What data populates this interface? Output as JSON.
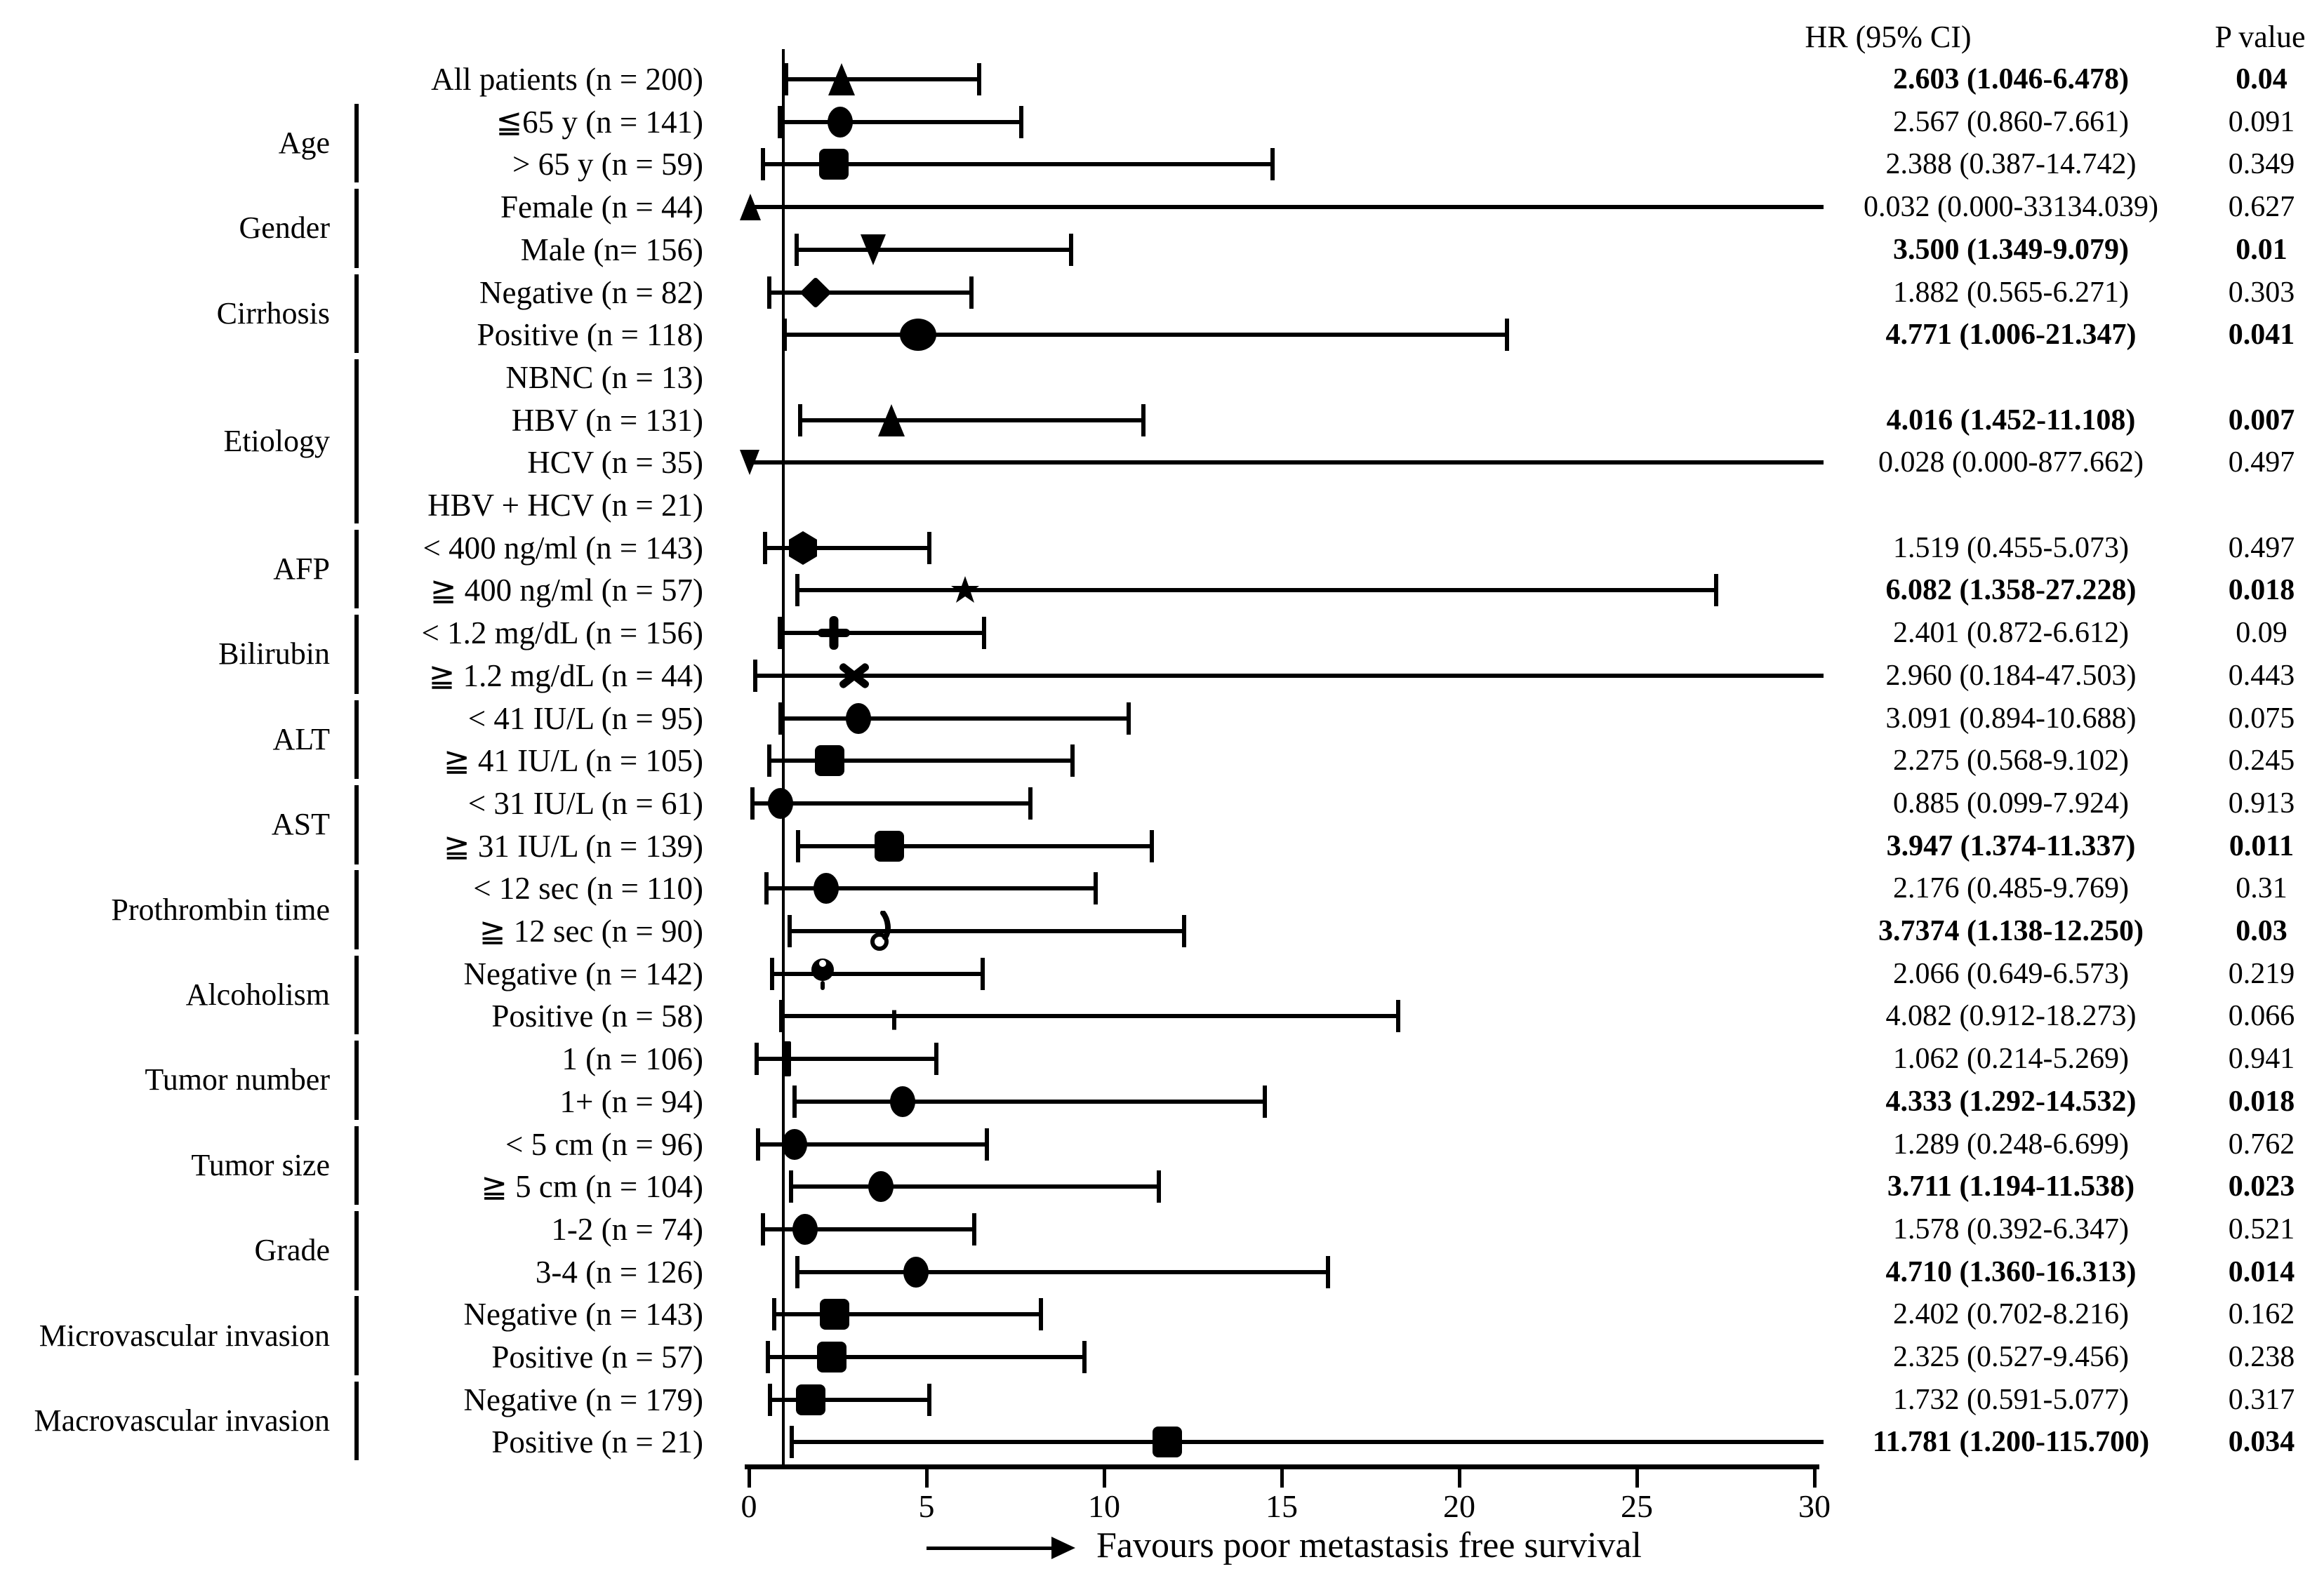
{
  "chart_data": {
    "type": "scatter",
    "chart_kind": "forest-plot",
    "title": "",
    "xlabel": "",
    "ylabel": "",
    "grid": false,
    "x_axis": {
      "min": 0,
      "max": 30,
      "ticks": [
        "0",
        "5",
        "10",
        "15",
        "20",
        "25",
        "30"
      ],
      "direction_label": "Favours poor metastasis free survival"
    },
    "column_headers": {
      "hr": "HR (95% CI)",
      "p": "P value"
    },
    "rows": [
      {
        "group": "",
        "label": "All patients (n = 200)",
        "marker": "triangle-up",
        "hr": 2.603,
        "ci_low": 1.046,
        "ci_high": 6.478,
        "hr_ci": "2.603 (1.046-6.478)",
        "p": "0.04",
        "significant": true
      },
      {
        "group": "Age",
        "label": "≦65 y (n = 141)",
        "marker": "ellipse",
        "hr": 2.567,
        "ci_low": 0.86,
        "ci_high": 7.661,
        "hr_ci": "2.567 (0.860-7.661)",
        "p": "0.091",
        "significant": false
      },
      {
        "group": "Age",
        "label": "> 65 y (n = 59)",
        "marker": "square",
        "hr": 2.388,
        "ci_low": 0.387,
        "ci_high": 14.742,
        "hr_ci": "2.388 (0.387-14.742)",
        "p": "0.349",
        "significant": false
      },
      {
        "group": "Gender",
        "label": "Female (n = 44)",
        "marker": "triangle-up-small",
        "hr": 0.032,
        "ci_low": 0.0,
        "ci_high": 33134.039,
        "hr_ci": "0.032 (0.000-33134.039)",
        "p": "0.627",
        "significant": false
      },
      {
        "group": "Gender",
        "label": "Male (n= 156)",
        "marker": "triangle-down",
        "hr": 3.5,
        "ci_low": 1.349,
        "ci_high": 9.079,
        "hr_ci": "3.500 (1.349-9.079)",
        "p": "0.01",
        "significant": true
      },
      {
        "group": "Cirrhosis",
        "label": "Negative (n = 82)",
        "marker": "diamond",
        "hr": 1.882,
        "ci_low": 0.565,
        "ci_high": 6.271,
        "hr_ci": "1.882 (0.565-6.271)",
        "p": "0.303",
        "significant": false
      },
      {
        "group": "Cirrhosis",
        "label": "Positive (n = 118)",
        "marker": "circle-large",
        "hr": 4.771,
        "ci_low": 1.006,
        "ci_high": 21.347,
        "hr_ci": "4.771 (1.006-21.347)",
        "p": "0.041",
        "significant": true
      },
      {
        "group": "Etiology",
        "label": "NBNC (n = 13)",
        "marker": "none",
        "hr": null,
        "ci_low": null,
        "ci_high": null,
        "hr_ci": "",
        "p": "",
        "significant": false
      },
      {
        "group": "Etiology",
        "label": "HBV (n = 131)",
        "marker": "triangle-up",
        "hr": 4.016,
        "ci_low": 1.452,
        "ci_high": 11.108,
        "hr_ci": "4.016 (1.452-11.108)",
        "p": "0.007",
        "significant": true
      },
      {
        "group": "Etiology",
        "label": "HCV (n = 35)",
        "marker": "triangle-down-small",
        "hr": 0.028,
        "ci_low": 0.0,
        "ci_high": 877.662,
        "hr_ci": "0.028 (0.000-877.662)",
        "p": "0.497",
        "significant": false
      },
      {
        "group": "Etiology",
        "label": "HBV + HCV (n = 21)",
        "marker": "none",
        "hr": null,
        "ci_low": null,
        "ci_high": null,
        "hr_ci": "",
        "p": "",
        "significant": false
      },
      {
        "group": "AFP",
        "label": "< 400 ng/ml (n = 143)",
        "marker": "hexagon",
        "hr": 1.519,
        "ci_low": 0.455,
        "ci_high": 5.073,
        "hr_ci": "1.519 (0.455-5.073)",
        "p": "0.497",
        "significant": false
      },
      {
        "group": "AFP",
        "label": "≧ 400 ng/ml (n = 57)",
        "marker": "star",
        "hr": 6.082,
        "ci_low": 1.358,
        "ci_high": 27.228,
        "hr_ci": "6.082 (1.358-27.228)",
        "p": "0.018",
        "significant": true
      },
      {
        "group": "Bilirubin",
        "label": "< 1.2 mg/dL (n = 156)",
        "marker": "plus",
        "hr": 2.401,
        "ci_low": 0.872,
        "ci_high": 6.612,
        "hr_ci": "2.401 (0.872-6.612)",
        "p": "0.09",
        "significant": false
      },
      {
        "group": "Bilirubin",
        "label": "≧ 1.2 mg/dL (n = 44)",
        "marker": "cross",
        "hr": 2.96,
        "ci_low": 0.184,
        "ci_high": 47.503,
        "hr_ci": "2.960 (0.184-47.503)",
        "p": "0.443",
        "significant": false
      },
      {
        "group": "ALT",
        "label": "< 41 IU/L (n = 95)",
        "marker": "ellipse",
        "hr": 3.091,
        "ci_low": 0.894,
        "ci_high": 10.688,
        "hr_ci": "3.091 (0.894-10.688)",
        "p": "0.075",
        "significant": false
      },
      {
        "group": "ALT",
        "label": "≧ 41 IU/L (n = 105)",
        "marker": "square",
        "hr": 2.275,
        "ci_low": 0.568,
        "ci_high": 9.102,
        "hr_ci": "2.275 (0.568-9.102)",
        "p": "0.245",
        "significant": false
      },
      {
        "group": "AST",
        "label": "< 31 IU/L (n = 61)",
        "marker": "ellipse",
        "hr": 0.885,
        "ci_low": 0.099,
        "ci_high": 7.924,
        "hr_ci": "0.885 (0.099-7.924)",
        "p": "0.913",
        "significant": false
      },
      {
        "group": "AST",
        "label": "≧ 31 IU/L (n = 139)",
        "marker": "square",
        "hr": 3.947,
        "ci_low": 1.374,
        "ci_high": 11.337,
        "hr_ci": "3.947 (1.374-11.337)",
        "p": "0.011",
        "significant": true
      },
      {
        "group": "Prothrombin time",
        "label": "< 12 sec (n = 110)",
        "marker": "ellipse",
        "hr": 2.176,
        "ci_low": 0.485,
        "ci_high": 9.769,
        "hr_ci": "2.176 (0.485-9.769)",
        "p": "0.31",
        "significant": false
      },
      {
        "group": "Prothrombin time",
        "label": "≧ 12 sec (n = 90)",
        "marker": "circle-tail",
        "hr": 3.7374,
        "ci_low": 1.138,
        "ci_high": 12.25,
        "hr_ci": "3.7374 (1.138-12.250)",
        "p": "0.03",
        "significant": true
      },
      {
        "group": "Alcoholism",
        "label": "Negative (n = 142)",
        "marker": "circle-dot",
        "hr": 2.066,
        "ci_low": 0.649,
        "ci_high": 6.573,
        "hr_ci": "2.066 (0.649-6.573)",
        "p": "0.219",
        "significant": false
      },
      {
        "group": "Alcoholism",
        "label": "Positive (n = 58)",
        "marker": "tick",
        "hr": 4.082,
        "ci_low": 0.912,
        "ci_high": 18.273,
        "hr_ci": "4.082 (0.912-18.273)",
        "p": "0.066",
        "significant": false
      },
      {
        "group": "Tumor number",
        "label": "1 (n = 106)",
        "marker": "bar",
        "hr": 1.062,
        "ci_low": 0.214,
        "ci_high": 5.269,
        "hr_ci": "1.062 (0.214-5.269)",
        "p": "0.941",
        "significant": false
      },
      {
        "group": "Tumor number",
        "label": "1+ (n = 94)",
        "marker": "ellipse",
        "hr": 4.333,
        "ci_low": 1.292,
        "ci_high": 14.532,
        "hr_ci": "4.333 (1.292-14.532)",
        "p": "0.018",
        "significant": true
      },
      {
        "group": "Tumor size",
        "label": "< 5 cm (n = 96)",
        "marker": "ellipse",
        "hr": 1.289,
        "ci_low": 0.248,
        "ci_high": 6.699,
        "hr_ci": "1.289 (0.248-6.699)",
        "p": "0.762",
        "significant": false
      },
      {
        "group": "Tumor size",
        "label": "≧ 5 cm (n = 104)",
        "marker": "ellipse",
        "hr": 3.711,
        "ci_low": 1.194,
        "ci_high": 11.538,
        "hr_ci": "3.711 (1.194-11.538)",
        "p": "0.023",
        "significant": true
      },
      {
        "group": "Grade",
        "label": "1-2 (n = 74)",
        "marker": "ellipse",
        "hr": 1.578,
        "ci_low": 0.392,
        "ci_high": 6.347,
        "hr_ci": "1.578 (0.392-6.347)",
        "p": "0.521",
        "significant": false
      },
      {
        "group": "Grade",
        "label": "3-4 (n = 126)",
        "marker": "ellipse",
        "hr": 4.71,
        "ci_low": 1.36,
        "ci_high": 16.313,
        "hr_ci": "4.710 (1.360-16.313)",
        "p": "0.014",
        "significant": true
      },
      {
        "group": "Microvascular invasion",
        "label": "Negative (n = 143)",
        "marker": "square",
        "hr": 2.402,
        "ci_low": 0.702,
        "ci_high": 8.216,
        "hr_ci": "2.402 (0.702-8.216)",
        "p": "0.162",
        "significant": false
      },
      {
        "group": "Microvascular invasion",
        "label": "Positive (n = 57)",
        "marker": "square",
        "hr": 2.325,
        "ci_low": 0.527,
        "ci_high": 9.456,
        "hr_ci": "2.325 (0.527-9.456)",
        "p": "0.238",
        "significant": false
      },
      {
        "group": "Macrovascular invasion",
        "label": "Negative (n = 179)",
        "marker": "square",
        "hr": 1.732,
        "ci_low": 0.591,
        "ci_high": 5.077,
        "hr_ci": "1.732 (0.591-5.077)",
        "p": "0.317",
        "significant": false
      },
      {
        "group": "Macrovascular invasion",
        "label": "Positive (n = 21)",
        "marker": "square",
        "hr": 11.781,
        "ci_low": 1.2,
        "ci_high": 115.7,
        "hr_ci": "11.781 (1.200-115.700)",
        "p": "0.034",
        "significant": true
      }
    ]
  }
}
